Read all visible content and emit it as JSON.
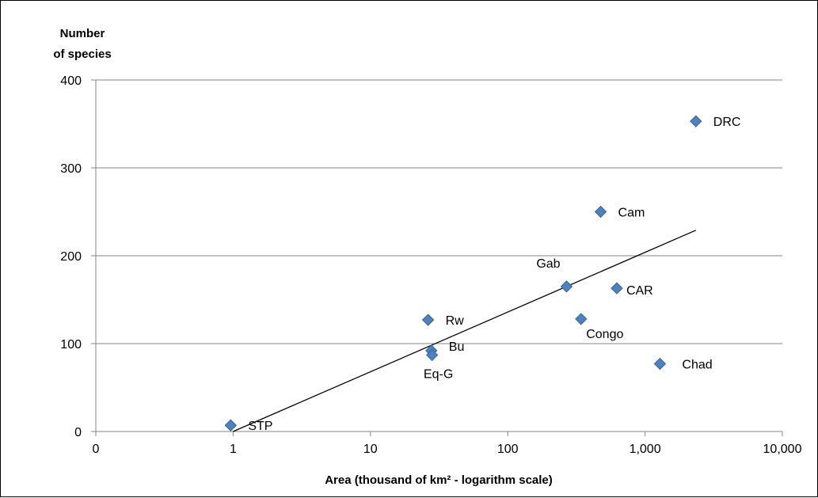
{
  "chart_data": {
    "type": "scatter",
    "title": "",
    "ylabel_lines": [
      "Number",
      "of species"
    ],
    "xlabel": "Area  (thousand of km² - logarithm scale)",
    "x_scale": "log",
    "x_ticks": [
      {
        "value": 0.1,
        "label": "0"
      },
      {
        "value": 1,
        "label": "1"
      },
      {
        "value": 10,
        "label": "10"
      },
      {
        "value": 100,
        "label": "100"
      },
      {
        "value": 1000,
        "label": "1,000"
      },
      {
        "value": 10000,
        "label": "10,000"
      }
    ],
    "y_ticks": [
      0,
      100,
      200,
      300,
      400
    ],
    "ylim": [
      0,
      400
    ],
    "grid": "horizontal",
    "marker_color": "#4f81bd",
    "points": [
      {
        "label": "STP",
        "x": 0.96,
        "y": 7
      },
      {
        "label": "Rw",
        "x": 26.3,
        "y": 127
      },
      {
        "label": "Bu",
        "x": 27.8,
        "y": 92
      },
      {
        "label": "Eq-G",
        "x": 28.1,
        "y": 87
      },
      {
        "label": "Gab",
        "x": 268,
        "y": 165
      },
      {
        "label": "Congo",
        "x": 342,
        "y": 128
      },
      {
        "label": "Cam",
        "x": 475,
        "y": 250
      },
      {
        "label": "CAR",
        "x": 623,
        "y": 163
      },
      {
        "label": "Chad",
        "x": 1284,
        "y": 77
      },
      {
        "label": "DRC",
        "x": 2345,
        "y": 353
      }
    ],
    "trendline": [
      {
        "x": 1,
        "y": 0
      },
      {
        "x": 2345,
        "y": 229
      }
    ]
  }
}
